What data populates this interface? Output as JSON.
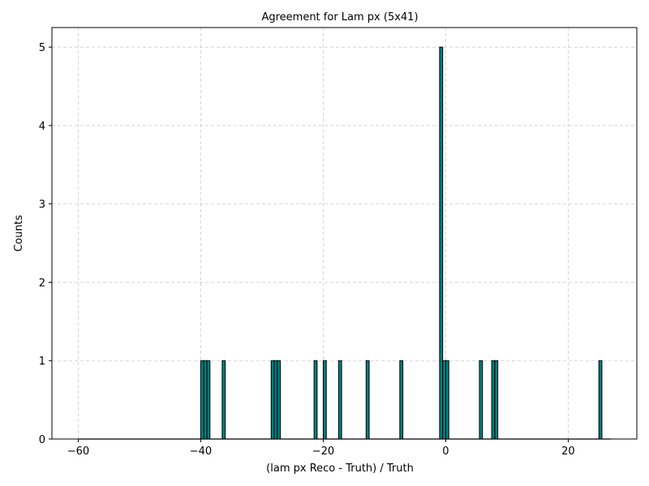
{
  "chart_data": {
    "type": "bar",
    "title": "Agreement for Lam px (5x41)",
    "xlabel": "(lam px Reco - Truth) / Truth",
    "ylabel": "Counts",
    "xlim": [
      -64.3,
      31.2
    ],
    "ylim": [
      0,
      5.25
    ],
    "xticks": [
      -60,
      -40,
      -20,
      0,
      20
    ],
    "xtick_labels": [
      "−60",
      "−40",
      "−20",
      "0",
      "20"
    ],
    "yticks": [
      0,
      1,
      2,
      3,
      4,
      5
    ],
    "ytick_labels": [
      "0",
      "1",
      "2",
      "3",
      "4",
      "5"
    ],
    "grid": true,
    "bin_range": [
      -60,
      27
    ],
    "bin_width": 0.5,
    "bar_color": "#008080",
    "edge_color": "#000000",
    "series": [
      {
        "values": [
          {
            "x": -39.75,
            "count": 1
          },
          {
            "x": -39.25,
            "count": 1
          },
          {
            "x": -38.75,
            "count": 1
          },
          {
            "x": -36.25,
            "count": 1
          },
          {
            "x": -28.25,
            "count": 1
          },
          {
            "x": -27.75,
            "count": 1
          },
          {
            "x": -27.25,
            "count": 1
          },
          {
            "x": -21.25,
            "count": 1
          },
          {
            "x": -19.75,
            "count": 1
          },
          {
            "x": -17.25,
            "count": 1
          },
          {
            "x": -12.75,
            "count": 1
          },
          {
            "x": -7.25,
            "count": 1
          },
          {
            "x": -0.75,
            "count": 5
          },
          {
            "x": -0.25,
            "count": 1
          },
          {
            "x": 0.25,
            "count": 1
          },
          {
            "x": 5.75,
            "count": 1
          },
          {
            "x": 7.75,
            "count": 1
          },
          {
            "x": 8.25,
            "count": 1
          },
          {
            "x": 25.25,
            "count": 1
          }
        ]
      }
    ]
  }
}
